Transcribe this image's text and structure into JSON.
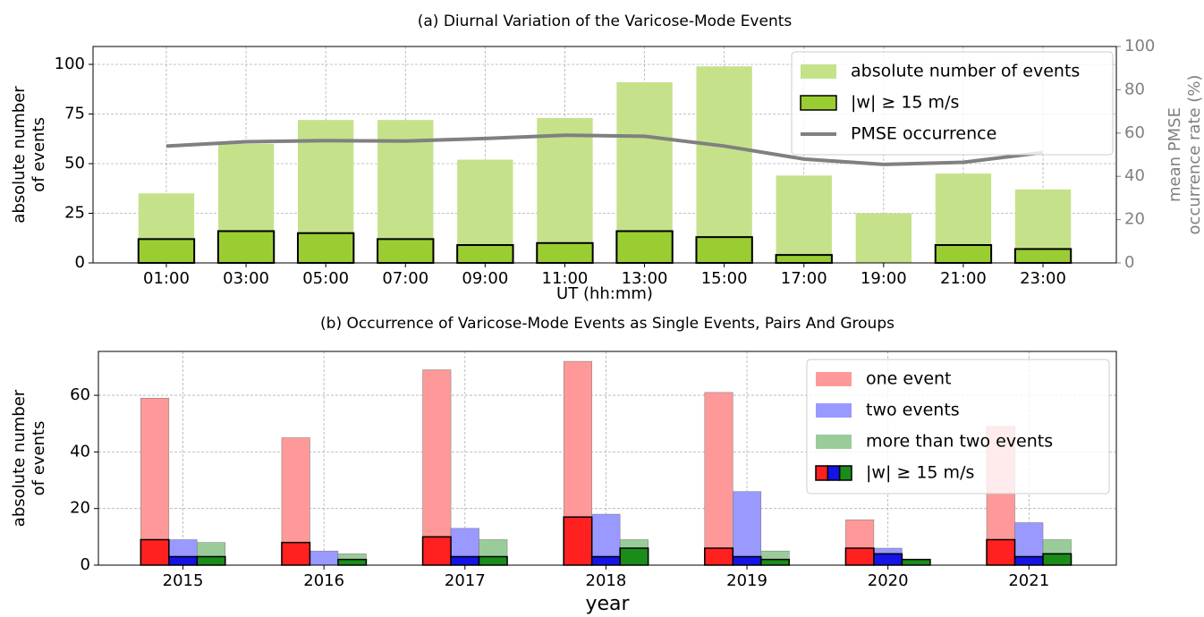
{
  "chart_data": [
    {
      "type": "bar",
      "title": "(a) Diurnal Variation of the Varicose-Mode Events",
      "xlabel": "UT (hh:mm)",
      "ylabel": [
        "absolute number",
        "of events"
      ],
      "y2label": [
        "mean PMSE",
        "occurrence rate (%)"
      ],
      "categories": [
        "01:00",
        "03:00",
        "05:00",
        "07:00",
        "09:00",
        "11:00",
        "13:00",
        "15:00",
        "17:00",
        "19:00",
        "21:00",
        "23:00"
      ],
      "series": [
        {
          "name": "absolute number of events",
          "color": "#c5e28a",
          "values": [
            35,
            60,
            72,
            72,
            52,
            73,
            91,
            99,
            44,
            25,
            45,
            37
          ]
        },
        {
          "name": "|w|  ≥  15 m/s",
          "color": "#9acd32",
          "edgecolor": "#000000",
          "values": [
            12,
            16,
            15,
            12,
            9,
            10,
            16,
            13,
            4,
            0,
            9,
            7
          ]
        },
        {
          "name": "PMSE occurrence",
          "type": "line",
          "axis": "y2",
          "color": "#808080",
          "values": [
            54,
            56,
            56.5,
            56.3,
            57.5,
            59,
            58.5,
            54,
            48,
            45.5,
            46.5,
            51
          ]
        }
      ],
      "ylim": [
        0,
        109
      ],
      "yticks": [
        0,
        25,
        50,
        75,
        100
      ],
      "y2lim": [
        0,
        100
      ],
      "y2ticks": [
        0,
        20,
        40,
        60,
        80,
        100
      ],
      "grid": true,
      "legend": "upper right"
    },
    {
      "type": "grouped_bar",
      "title": "(b) Occurrence of Varicose-Mode Events as Single Events, Pairs And Groups",
      "xlabel": "year",
      "ylabel": [
        "absolute number",
        "of events"
      ],
      "categories": [
        "2015",
        "2016",
        "2017",
        "2018",
        "2019",
        "2020",
        "2021"
      ],
      "series": [
        {
          "name": "one event",
          "color": "#ff9999",
          "values": [
            59,
            45,
            69,
            72,
            61,
            16,
            49
          ],
          "strong_color": "#ff2020",
          "strong_values": [
            9,
            8,
            10,
            17,
            6,
            6,
            9
          ]
        },
        {
          "name": "two events",
          "color": "#9999ff",
          "values": [
            9,
            5,
            13,
            18,
            26,
            6,
            15
          ],
          "strong_color": "#1414e6",
          "strong_values": [
            3,
            0,
            3,
            3,
            3,
            4,
            3
          ]
        },
        {
          "name": "more than two events",
          "color": "#99cc99",
          "values": [
            8,
            4,
            9,
            9,
            5,
            2,
            9
          ],
          "strong_color": "#1a8c1a",
          "strong_values": [
            3,
            2,
            3,
            6,
            2,
            2,
            4
          ]
        }
      ],
      "strong_label": "|w|  ≥  15 m/s",
      "ylim": [
        0,
        75.5
      ],
      "yticks": [
        0,
        20,
        40,
        60
      ],
      "grid": true,
      "legend": "upper right"
    }
  ]
}
